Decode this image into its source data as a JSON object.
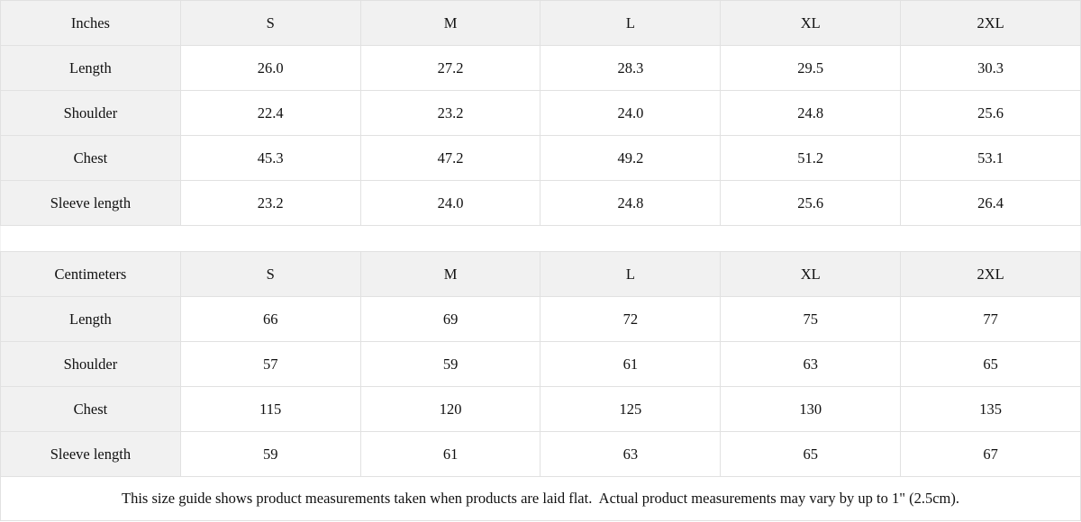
{
  "size_guide": {
    "tables": [
      {
        "unit_label": "Inches",
        "columns": [
          "S",
          "M",
          "L",
          "XL",
          "2XL"
        ],
        "rows": [
          {
            "label": "Length",
            "values": [
              "26.0",
              "27.2",
              "28.3",
              "29.5",
              "30.3"
            ]
          },
          {
            "label": "Shoulder",
            "values": [
              "22.4",
              "23.2",
              "24.0",
              "24.8",
              "25.6"
            ]
          },
          {
            "label": "Chest",
            "values": [
              "45.3",
              "47.2",
              "49.2",
              "51.2",
              "53.1"
            ]
          },
          {
            "label": "Sleeve length",
            "values": [
              "23.2",
              "24.0",
              "24.8",
              "25.6",
              "26.4"
            ]
          }
        ]
      },
      {
        "unit_label": "Centimeters",
        "columns": [
          "S",
          "M",
          "L",
          "XL",
          "2XL"
        ],
        "rows": [
          {
            "label": "Length",
            "values": [
              "66",
              "69",
              "72",
              "75",
              "77"
            ]
          },
          {
            "label": "Shoulder",
            "values": [
              "57",
              "59",
              "61",
              "63",
              "65"
            ]
          },
          {
            "label": "Chest",
            "values": [
              "115",
              "120",
              "125",
              "130",
              "135"
            ]
          },
          {
            "label": "Sleeve length",
            "values": [
              "59",
              "61",
              "63",
              "65",
              "67"
            ]
          }
        ]
      }
    ],
    "footer_note": "This size guide shows product measurements taken when products are laid flat.  Actual product measurements may vary by up to 1\" (2.5cm).",
    "colors": {
      "header_bg": "#f1f1f1",
      "border": "#e1e1e1",
      "text": "#111111"
    }
  }
}
